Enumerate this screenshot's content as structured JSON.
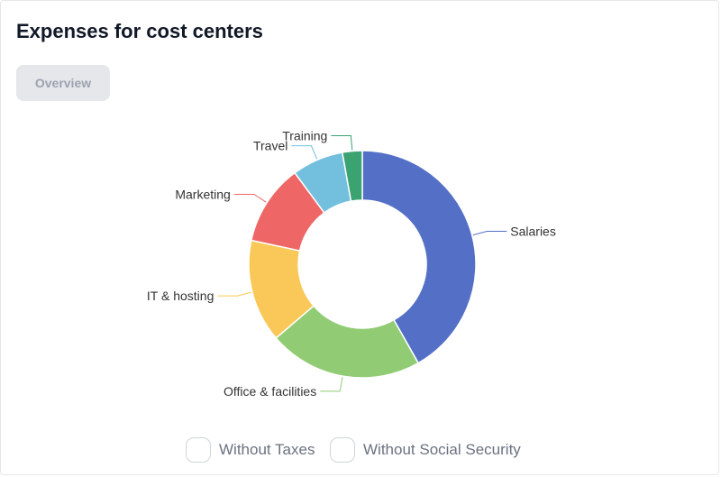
{
  "card": {
    "title": "Expenses for cost centers"
  },
  "tabs": [
    {
      "label": "Overview",
      "state": "disabled"
    }
  ],
  "chart_data": {
    "type": "pie",
    "donut": true,
    "categories": [
      "Salaries",
      "Office & facilities",
      "IT & hosting",
      "Marketing",
      "Travel",
      "Training"
    ],
    "values": [
      40,
      21,
      14,
      11,
      7,
      2.7
    ],
    "colors": [
      "#5470c6",
      "#91cc75",
      "#fac858",
      "#ee6666",
      "#73c0de",
      "#3ba272"
    ],
    "labels_outside": true
  },
  "options": [
    {
      "label": "Without Taxes",
      "checked": false
    },
    {
      "label": "Without Social Security",
      "checked": false
    }
  ]
}
